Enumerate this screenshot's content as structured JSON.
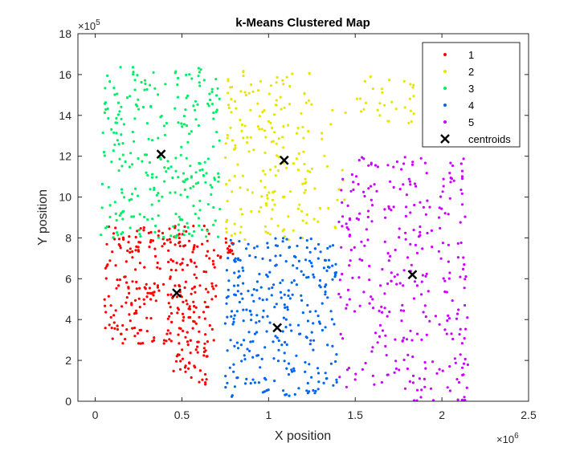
{
  "chart_data": {
    "type": "scatter",
    "title": "k-Means Clustered Map",
    "xlabel": "X position",
    "ylabel": "Y position",
    "xlim": [
      -0.1,
      2.5
    ],
    "ylim": [
      0,
      18
    ],
    "x_multiplier_label": "×10",
    "x_multiplier_exp": "6",
    "y_multiplier_label": "×10",
    "y_multiplier_exp": "5",
    "xticks": [
      0,
      0.5,
      1,
      1.5,
      2,
      2.5
    ],
    "xtick_labels": [
      "0",
      "0.5",
      "1",
      "1.5",
      "2",
      "2.5"
    ],
    "yticks": [
      0,
      2,
      4,
      6,
      8,
      10,
      12,
      14,
      16,
      18
    ],
    "ytick_labels": [
      "0",
      "2",
      "4",
      "6",
      "8",
      "10",
      "12",
      "14",
      "16",
      "18"
    ],
    "grid": false,
    "legend_position": "top-right",
    "series": [
      {
        "name": "1",
        "color": "#ff0000",
        "regions": [
          [
            0.05,
            0.7,
            2.8,
            8.6,
            290
          ],
          [
            0.45,
            0.65,
            0.8,
            3.0,
            40
          ],
          [
            0.7,
            0.8,
            7.0,
            8.0,
            15
          ]
        ]
      },
      {
        "name": "2",
        "color": "#e6e600",
        "regions": [
          [
            0.75,
            1.25,
            7.9,
            16.4,
            180
          ],
          [
            1.25,
            1.45,
            8.0,
            14.5,
            20
          ],
          [
            1.5,
            1.85,
            13.5,
            16.0,
            30
          ]
        ]
      },
      {
        "name": "3",
        "color": "#00ee66",
        "regions": [
          [
            0.03,
            0.72,
            8.0,
            16.4,
            280
          ]
        ]
      },
      {
        "name": "4",
        "color": "#0066ee",
        "regions": [
          [
            0.75,
            1.4,
            0.2,
            8.0,
            300
          ]
        ]
      },
      {
        "name": "5",
        "color": "#cc00ff",
        "regions": [
          [
            1.4,
            2.15,
            0.0,
            12.0,
            320
          ]
        ]
      }
    ],
    "centroids": {
      "name": "centroids",
      "points": [
        [
          0.38,
          12.1
        ],
        [
          1.09,
          11.8
        ],
        [
          0.47,
          5.3
        ],
        [
          1.05,
          3.6
        ],
        [
          1.83,
          6.2
        ]
      ]
    }
  }
}
